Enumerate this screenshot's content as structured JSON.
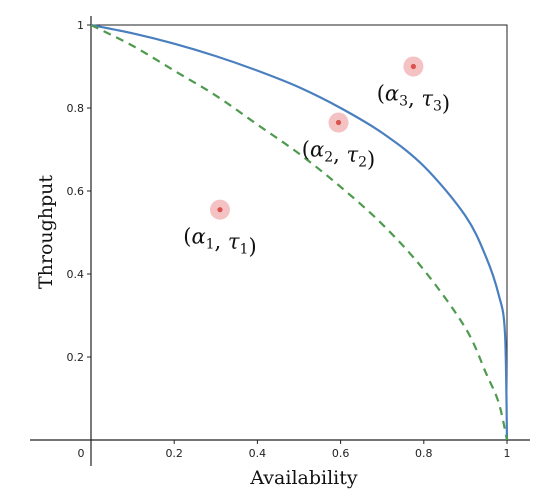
{
  "chart_data": {
    "type": "line",
    "xlabel": "Availability",
    "ylabel": "Throughput",
    "xlim": [
      0,
      1
    ],
    "ylim": [
      0,
      1
    ],
    "x_ticks": [
      {
        "value": 0,
        "label": "0"
      },
      {
        "value": 0.2,
        "label": "0.2"
      },
      {
        "value": 0.4,
        "label": "0.4"
      },
      {
        "value": 0.6,
        "label": "0.6"
      },
      {
        "value": 0.8,
        "label": "0.8"
      },
      {
        "value": 1,
        "label": "1"
      }
    ],
    "y_ticks": [
      {
        "value": 0.2,
        "label": "0.2"
      },
      {
        "value": 0.4,
        "label": "0.4"
      },
      {
        "value": 0.6,
        "label": "0.6"
      },
      {
        "value": 0.8,
        "label": "0.8"
      },
      {
        "value": 1,
        "label": "1"
      }
    ],
    "grid": false,
    "series": [
      {
        "style": "solid",
        "color": "#4a7fbf",
        "x": [
          0,
          0.1,
          0.2,
          0.3,
          0.4,
          0.5,
          0.6,
          0.7,
          0.8,
          0.9,
          0.95,
          0.98,
          0.995,
          1
        ],
        "y": [
          1,
          0.98,
          0.955,
          0.925,
          0.89,
          0.85,
          0.8,
          0.74,
          0.66,
          0.54,
          0.44,
          0.35,
          0.26,
          0
        ]
      },
      {
        "style": "dashed",
        "color": "#4e9a4e",
        "x": [
          0,
          0.1,
          0.2,
          0.3,
          0.4,
          0.5,
          0.6,
          0.7,
          0.8,
          0.9,
          0.95,
          0.98,
          1
        ],
        "y": [
          1,
          0.95,
          0.89,
          0.83,
          0.76,
          0.69,
          0.61,
          0.52,
          0.41,
          0.27,
          0.16,
          0.09,
          0
        ]
      }
    ],
    "points": [
      {
        "x": 0.31,
        "y": 0.555,
        "symbol": "α",
        "sub_a": "1",
        "sub_b": "1",
        "tau": "τ"
      },
      {
        "x": 0.595,
        "y": 0.765,
        "symbol": "α",
        "sub_a": "2",
        "sub_b": "2",
        "tau": "τ"
      },
      {
        "x": 0.775,
        "y": 0.9,
        "symbol": "α",
        "sub_a": "3",
        "sub_b": "3",
        "tau": "τ"
      }
    ],
    "point_color": "#d9534f",
    "halo_color": "#f4c2c2"
  }
}
